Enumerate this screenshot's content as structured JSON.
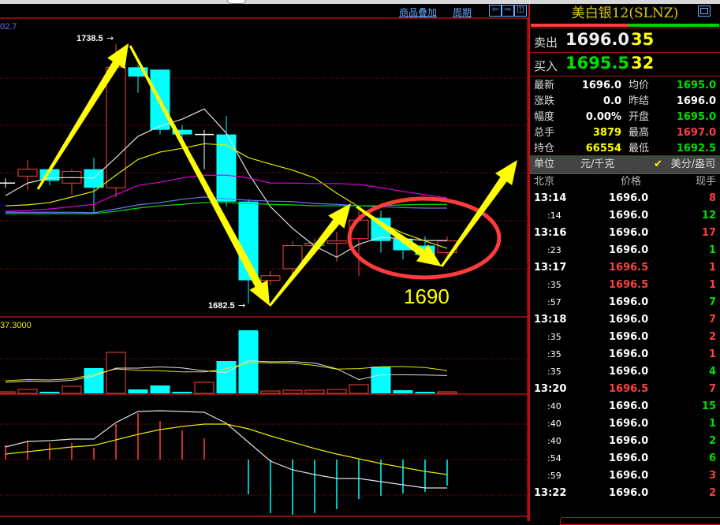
{
  "colors": {
    "up": "#ff4040",
    "down": "#00ffff",
    "grid": "#b01010",
    "ma5": "#e0e0e0",
    "ma10": "#e8e800",
    "ma20": "#e000e0",
    "ma_blue": "#7070ff",
    "ma_green": "#00e000",
    "annotation": "#ffff00",
    "circle": "#ff3c3c",
    "link": "#6aa8ff"
  },
  "header": {
    "overlay_link": "商品叠加",
    "period_link": "周期",
    "nav_icons": [
      "arrow-left-icon",
      "arrow-right-icon",
      "split-view-icon"
    ]
  },
  "chart_data": {
    "type": "candlestick",
    "axis_label_partial": "02.7",
    "candles": [
      {
        "o": 1708.5,
        "h": 1709.5,
        "l": 1707.5,
        "c": 1708.5
      },
      {
        "o": 1710,
        "h": 1713.5,
        "l": 1707,
        "c": 1711.5
      },
      {
        "o": 1711.5,
        "h": 1712,
        "l": 1708,
        "c": 1709
      },
      {
        "o": 1708.5,
        "h": 1711.5,
        "l": 1706,
        "c": 1711
      },
      {
        "o": 1711.5,
        "h": 1714,
        "l": 1702,
        "c": 1707.5
      },
      {
        "o": 1707.5,
        "h": 1738.5,
        "l": 1705.5,
        "c": 1733.5
      },
      {
        "o": 1733.5,
        "h": 1734,
        "l": 1728,
        "c": 1731.5
      },
      {
        "o": 1733,
        "h": 1733,
        "l": 1719,
        "c": 1720
      },
      {
        "o": 1720,
        "h": 1721,
        "l": 1718,
        "c": 1719
      },
      {
        "o": 1719,
        "h": 1720,
        "l": 1711.5,
        "c": 1719
      },
      {
        "o": 1719,
        "h": 1723,
        "l": 1703.5,
        "c": 1704.5
      },
      {
        "o": 1704.5,
        "h": 1705,
        "l": 1682.5,
        "c": 1687.5
      },
      {
        "o": 1687.5,
        "h": 1689.5,
        "l": 1686.5,
        "c": 1688.5
      },
      {
        "o": 1690,
        "h": 1696,
        "l": 1688.5,
        "c": 1695
      },
      {
        "o": 1695,
        "h": 1696.5,
        "l": 1694,
        "c": 1695.5
      },
      {
        "o": 1695.5,
        "h": 1698,
        "l": 1691.5,
        "c": 1696
      },
      {
        "o": 1696.5,
        "h": 1702.5,
        "l": 1688.5,
        "c": 1700.5
      },
      {
        "o": 1701,
        "h": 1702.5,
        "l": 1693.5,
        "c": 1696
      },
      {
        "o": 1696.5,
        "h": 1696.5,
        "l": 1692,
        "c": 1694
      },
      {
        "o": 1695,
        "h": 1697,
        "l": 1693,
        "c": 1693
      },
      {
        "o": 1693.5,
        "h": 1697,
        "l": 1693,
        "c": 1696
      }
    ],
    "moving_averages": [
      {
        "color": "#e0e0e0",
        "values": [
          1705.8,
          1708.5,
          1709.6,
          1709.7,
          1709.6,
          1714,
          1718.6,
          1720.8,
          1722.3,
          1724.5,
          1719.3,
          1710.6,
          1703.4,
          1698.7,
          1694.9,
          1692.5,
          1695.3,
          1696.8,
          1696.5,
          1696.1,
          1696.1
        ]
      },
      {
        "color": "#e8e800",
        "values": [
          1703.6,
          1703.8,
          1704.3,
          1705.5,
          1706.7,
          1710.2,
          1713.6,
          1715.2,
          1716,
          1717,
          1716.7,
          1714,
          1712.6,
          1711.3,
          1709.6,
          1706.3,
          1703.4,
          1699.9,
          1697.7,
          1696,
          1694.4
        ]
      },
      {
        "color": "#e000e0",
        "values": [
          1702.4,
          1702.6,
          1702.9,
          1703.4,
          1703.9,
          1706,
          1708,
          1708.7,
          1709.6,
          1710.2,
          1710.2,
          1709.6,
          1708.5,
          1708.5,
          1708.4,
          1708.4,
          1708.2,
          1707.5,
          1706.7,
          1706,
          1705.3
        ]
      },
      {
        "color": "#7070ff",
        "values": [
          1702.2,
          1702.2,
          1702.2,
          1702.2,
          1702.1,
          1702.9,
          1703.8,
          1704.3,
          1705,
          1705.5,
          1705.1,
          1704.8,
          1704.6,
          1704.5,
          1704.1,
          1703.9,
          1703.6,
          1703.4,
          1703.2,
          1703.1,
          1703.1
        ]
      },
      {
        "color": "#00e000",
        "values": [
          1701.9,
          1701.9,
          1701.9,
          1701.9,
          1701.9,
          1702.4,
          1703.1,
          1703.6,
          1703.9,
          1704.3,
          1704.3,
          1704.1,
          1703.9,
          1703.8,
          1703.6,
          1703.6,
          1703.6,
          1703.6,
          1703.8,
          1703.9,
          1703.9
        ]
      }
    ],
    "high_label": "1738.5",
    "low_label": "1682.5",
    "annotation_text": "1690",
    "volume": {
      "scale_label": "37.3000",
      "values": [
        2,
        5,
        2,
        9,
        32,
        52,
        5,
        10,
        2,
        14,
        41,
        80,
        3,
        4,
        4,
        5,
        11,
        34,
        4,
        2,
        2
      ]
    },
    "macd": {
      "bars": [
        1.9,
        2.4,
        2.1,
        2.1,
        1.5,
        4.5,
        5.9,
        4.9,
        3.7,
        2.7,
        0,
        -4.4,
        -6.8,
        -7,
        -6.8,
        -6.3,
        -5,
        -4.6,
        -4.3,
        -4.1,
        -3.3
      ],
      "dif": [
        1.6,
        2.3,
        2.4,
        2.6,
        2.6,
        4.7,
        6.1,
        6.2,
        6.1,
        6.0,
        4.6,
        2.2,
        -0.2,
        -1.3,
        -1.9,
        -2.4,
        -2.4,
        -2.8,
        -3.2,
        -3.6,
        -3.6
      ],
      "dea": [
        0.7,
        1.0,
        1.3,
        1.6,
        1.8,
        2.5,
        3.2,
        3.8,
        4.2,
        4.5,
        4.5,
        3.9,
        3.0,
        2.2,
        1.4,
        0.7,
        0.1,
        -0.5,
        -1.0,
        -1.5,
        -1.9
      ]
    }
  },
  "quote": {
    "title": "美白银12(SLNZ)",
    "buy_ratio": 0.52,
    "sell": {
      "label": "卖出",
      "price": "1696.0",
      "volume": "35"
    },
    "buy": {
      "label": "买入",
      "price": "1695.5",
      "volume": "32"
    },
    "stats": [
      {
        "k": "最新",
        "v": "1696.0",
        "color": "#ffffff"
      },
      {
        "k": "均价",
        "v": "1695.0",
        "color": "#00e000"
      },
      {
        "k": "涨跌",
        "v": "0.0",
        "color": "#ffffff"
      },
      {
        "k": "昨结",
        "v": "1696.0",
        "color": "#ffffff"
      },
      {
        "k": "幅度",
        "v": "0.00%",
        "color": "#ffffff"
      },
      {
        "k": "开盘",
        "v": "1695.0",
        "color": "#00e000"
      },
      {
        "k": "总手",
        "v": "3879",
        "color": "#ffff00"
      },
      {
        "k": "最高",
        "v": "1697.0",
        "color": "#ff4040"
      },
      {
        "k": "持仓",
        "v": "66554",
        "color": "#ffff00"
      },
      {
        "k": "最低",
        "v": "1692.5",
        "color": "#00e000"
      }
    ],
    "unit_label": "单位",
    "unit_cny": "元/千克",
    "unit_usd": "美分/盎司",
    "ticks_header": {
      "time": "北京",
      "price": "价格",
      "qty": "现手"
    },
    "ticks": [
      {
        "t": "13:14",
        "p": "1696.0",
        "q": "8",
        "pc": "#ffffff",
        "qc": "#ff4040"
      },
      {
        "t": ":14",
        "p": "1696.0",
        "q": "12",
        "pc": "#ffffff",
        "qc": "#00e000"
      },
      {
        "t": "13:16",
        "p": "1696.0",
        "q": "17",
        "pc": "#ffffff",
        "qc": "#ff4040"
      },
      {
        "t": ":23",
        "p": "1696.0",
        "q": "1",
        "pc": "#ffffff",
        "qc": "#00e000"
      },
      {
        "t": "13:17",
        "p": "1696.5",
        "q": "1",
        "pc": "#ff4040",
        "qc": "#ff4040"
      },
      {
        "t": ":35",
        "p": "1696.5",
        "q": "1",
        "pc": "#ff4040",
        "qc": "#ff4040"
      },
      {
        "t": ":57",
        "p": "1696.0",
        "q": "7",
        "pc": "#ffffff",
        "qc": "#00e000"
      },
      {
        "t": "13:18",
        "p": "1696.0",
        "q": "7",
        "pc": "#ffffff",
        "qc": "#ff4040"
      },
      {
        "t": ":35",
        "p": "1696.0",
        "q": "2",
        "pc": "#ffffff",
        "qc": "#ff4040"
      },
      {
        "t": ":35",
        "p": "1696.0",
        "q": "1",
        "pc": "#ffffff",
        "qc": "#ff4040"
      },
      {
        "t": ":35",
        "p": "1696.0",
        "q": "4",
        "pc": "#ffffff",
        "qc": "#00e000"
      },
      {
        "t": "13:20",
        "p": "1696.5",
        "q": "7",
        "pc": "#ff4040",
        "qc": "#ff4040"
      },
      {
        "t": ":40",
        "p": "1696.0",
        "q": "15",
        "pc": "#ffffff",
        "qc": "#00e000"
      },
      {
        "t": ":40",
        "p": "1696.0",
        "q": "1",
        "pc": "#ffffff",
        "qc": "#00e000"
      },
      {
        "t": ":40",
        "p": "1696.0",
        "q": "2",
        "pc": "#ffffff",
        "qc": "#00e000"
      },
      {
        "t": ":54",
        "p": "1696.0",
        "q": "6",
        "pc": "#ffffff",
        "qc": "#00e000"
      },
      {
        "t": ":59",
        "p": "1696.0",
        "q": "3",
        "pc": "#ffffff",
        "qc": "#ff4040"
      },
      {
        "t": "13:22",
        "p": "1696.0",
        "q": "2",
        "pc": "#ffffff",
        "qc": "#ff4040"
      }
    ]
  }
}
